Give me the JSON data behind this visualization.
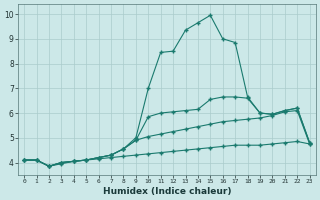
{
  "xlabel": "Humidex (Indice chaleur)",
  "background_color": "#cce8e8",
  "grid_color": "#aacccc",
  "line_color": "#1a7a6e",
  "xlim": [
    -0.5,
    23.5
  ],
  "ylim": [
    3.5,
    10.4
  ],
  "xtick_labels": [
    "0",
    "1",
    "2",
    "3",
    "4",
    "5",
    "6",
    "7",
    "8",
    "9",
    "10",
    "11",
    "12",
    "13",
    "14",
    "15",
    "16",
    "17",
    "18",
    "19",
    "20",
    "21",
    "22",
    "23"
  ],
  "ytick_labels": [
    "4",
    "5",
    "6",
    "7",
    "8",
    "9",
    "10"
  ],
  "ytick_vals": [
    4,
    5,
    6,
    7,
    8,
    9,
    10
  ],
  "x": [
    0,
    1,
    2,
    3,
    4,
    5,
    6,
    7,
    8,
    9,
    10,
    11,
    12,
    13,
    14,
    15,
    16,
    17,
    18,
    19,
    20,
    21,
    22,
    23
  ],
  "line1_y": [
    4.1,
    4.1,
    3.85,
    3.95,
    4.05,
    4.1,
    4.15,
    4.2,
    4.25,
    4.3,
    4.35,
    4.4,
    4.45,
    4.5,
    4.55,
    4.6,
    4.65,
    4.7,
    4.7,
    4.7,
    4.75,
    4.8,
    4.85,
    4.75
  ],
  "line2_y": [
    4.1,
    4.1,
    3.85,
    4.0,
    4.05,
    4.1,
    4.2,
    4.3,
    4.55,
    4.9,
    5.85,
    6.0,
    6.05,
    6.1,
    6.15,
    6.55,
    6.65,
    6.65,
    6.6,
    6.0,
    5.95,
    6.1,
    6.2,
    4.8
  ],
  "line3_y": [
    4.1,
    4.1,
    3.85,
    4.0,
    4.05,
    4.1,
    4.2,
    4.3,
    4.55,
    5.0,
    7.0,
    8.45,
    8.5,
    9.35,
    9.65,
    9.95,
    9.0,
    8.85,
    6.65,
    6.0,
    5.95,
    6.1,
    6.2,
    4.8
  ],
  "line4_y": [
    4.1,
    4.1,
    3.85,
    4.0,
    4.05,
    4.1,
    4.2,
    4.3,
    4.55,
    4.9,
    5.05,
    5.15,
    5.25,
    5.35,
    5.45,
    5.55,
    5.65,
    5.7,
    5.75,
    5.8,
    5.9,
    6.05,
    6.1,
    4.75
  ]
}
